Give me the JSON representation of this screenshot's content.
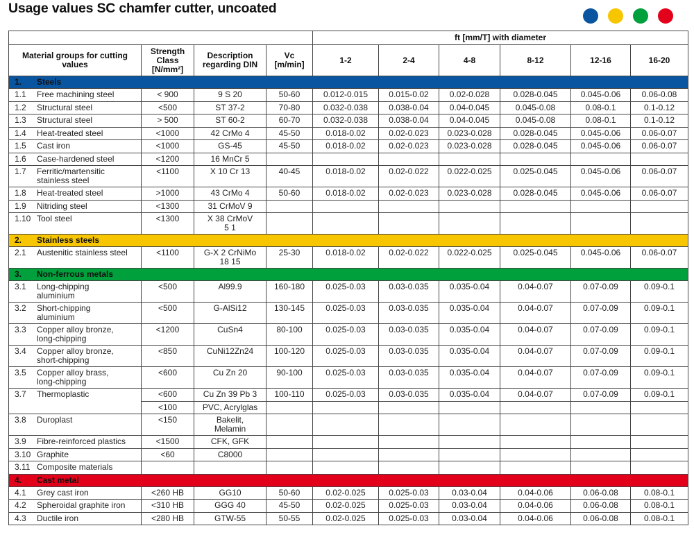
{
  "title": "Usage values SC chamfer cutter, uncoated",
  "legend_dots": [
    "#0a55a0",
    "#f7c600",
    "#00a03c",
    "#e2001a"
  ],
  "header": {
    "ft_group": "ft [mm/T] with diameter",
    "material": "Material groups for cutting values",
    "strength": "Strength Class [N/mm²]",
    "din": "Description regarding DIN",
    "vc": "Vc [m/min]",
    "diameters": [
      "1-2",
      "2-4",
      "4-8",
      "8-12",
      "12-16",
      "16-20"
    ]
  },
  "sections": [
    {
      "no": "1.",
      "name": "Steels",
      "color": "#0a55a0",
      "rows": [
        {
          "no": "1.1",
          "name": "Free machining steel",
          "strength": "< 900",
          "din": "9 S 20",
          "vc": "50-60",
          "ft": [
            "0.012-0.015",
            "0.015-0.02",
            "0.02-0.028",
            "0.028-0.045",
            "0.045-0.06",
            "0.06-0.08"
          ]
        },
        {
          "no": "1.2",
          "name": "Structural steel",
          "strength": "<500",
          "din": "ST 37-2",
          "vc": "70-80",
          "ft": [
            "0.032-0.038",
            "0.038-0.04",
            "0.04-0.045",
            "0.045-0.08",
            "0.08-0.1",
            "0.1-0.12"
          ]
        },
        {
          "no": "1.3",
          "name": "Structural steel",
          "strength": "> 500",
          "din": "ST 60-2",
          "vc": "60-70",
          "ft": [
            "0.032-0.038",
            "0.038-0.04",
            "0.04-0.045",
            "0.045-0.08",
            "0.08-0.1",
            "0.1-0.12"
          ]
        },
        {
          "no": "1.4",
          "name": "Heat-treated steel",
          "strength": "<1000",
          "din": "42 CrMo 4",
          "vc": "45-50",
          "ft": [
            "0.018-0.02",
            "0.02-0.023",
            "0.023-0.028",
            "0.028-0.045",
            "0.045-0.06",
            "0.06-0.07"
          ]
        },
        {
          "no": "1.5",
          "name": "Cast iron",
          "strength": "<1000",
          "din": "GS-45",
          "vc": "45-50",
          "ft": [
            "0.018-0.02",
            "0.02-0.023",
            "0.023-0.028",
            "0.028-0.045",
            "0.045-0.06",
            "0.06-0.07"
          ]
        },
        {
          "no": "1.6",
          "name": "Case-hardened steel",
          "strength": "<1200",
          "din": "16 MnCr 5",
          "vc": "",
          "ft": [
            "",
            "",
            "",
            "",
            "",
            ""
          ]
        },
        {
          "no": "1.7",
          "name": "Ferritic/martensitic\nstainless steel",
          "strength": "<1100",
          "din": "X 10 Cr 13",
          "vc": "40-45",
          "ft": [
            "0.018-0.02",
            "0.02-0.022",
            "0.022-0.025",
            "0.025-0.045",
            "0.045-0.06",
            "0.06-0.07"
          ]
        },
        {
          "no": "1.8",
          "name": "Heat-treated steel",
          "strength": ">1000",
          "din": "43 CrMo 4",
          "vc": "50-60",
          "ft": [
            "0.018-0.02",
            "0.02-0.023",
            "0.023-0.028",
            "0.028-0.045",
            "0.045-0.06",
            "0.06-0.07"
          ]
        },
        {
          "no": "1.9",
          "name": "Nitriding steel",
          "strength": "<1300",
          "din": "31 CrMoV 9",
          "vc": "",
          "ft": [
            "",
            "",
            "",
            "",
            "",
            ""
          ]
        },
        {
          "no": "1.10",
          "name": "Tool steel",
          "strength": "<1300",
          "din": "X 38 CrMoV\n5 1",
          "vc": "",
          "ft": [
            "",
            "",
            "",
            "",
            "",
            ""
          ]
        }
      ]
    },
    {
      "no": "2.",
      "name": "Stainless steels",
      "color": "#f7c600",
      "rows": [
        {
          "no": "2.1",
          "name": "Austenitic stainless steel",
          "strength": "<1100",
          "din": "G-X 2 CrNiMo\n18 15",
          "vc": "25-30",
          "ft": [
            "0.018-0.02",
            "0.02-0.022",
            "0.022-0.025",
            "0.025-0.045",
            "0.045-0.06",
            "0.06-0.07"
          ]
        }
      ]
    },
    {
      "no": "3.",
      "name": "Non-ferrous metals",
      "color": "#00a03c",
      "rows": [
        {
          "no": "3.1",
          "name": "Long-chipping\naluminium",
          "strength": "<500",
          "din": "Al99.9",
          "vc": "160-180",
          "ft": [
            "0.025-0.03",
            "0.03-0.035",
            "0.035-0.04",
            "0.04-0.07",
            "0.07-0.09",
            "0.09-0.1"
          ]
        },
        {
          "no": "3.2",
          "name": "Short-chipping\naluminium",
          "strength": "<500",
          "din": "G-AlSi12",
          "vc": "130-145",
          "ft": [
            "0.025-0.03",
            "0.03-0.035",
            "0.035-0.04",
            "0.04-0.07",
            "0.07-0.09",
            "0.09-0.1"
          ]
        },
        {
          "no": "3.3",
          "name": "Copper alloy bronze,\nlong-chipping",
          "strength": "<1200",
          "din": "CuSn4",
          "vc": "80-100",
          "ft": [
            "0.025-0.03",
            "0.03-0.035",
            "0.035-0.04",
            "0.04-0.07",
            "0.07-0.09",
            "0.09-0.1"
          ]
        },
        {
          "no": "3.4",
          "name": "Copper alloy bronze,\nshort-chipping",
          "strength": "<850",
          "din": "CuNi12Zn24",
          "vc": "100-120",
          "ft": [
            "0.025-0.03",
            "0.03-0.035",
            "0.035-0.04",
            "0.04-0.07",
            "0.07-0.09",
            "0.09-0.1"
          ]
        },
        {
          "no": "3.5",
          "name": "Copper alloy brass,\nlong-chipping",
          "strength": "<600",
          "din": "Cu Zn 20",
          "vc": "90-100",
          "ft": [
            "0.025-0.03",
            "0.03-0.035",
            "0.035-0.04",
            "0.04-0.07",
            "0.07-0.09",
            "0.09-0.1"
          ]
        },
        {
          "no": "3.7",
          "name": "Thermoplastic",
          "strength": "<600",
          "din": "Cu Zn 39 Pb 3",
          "vc": "100-110",
          "ft": [
            "0.025-0.03",
            "0.03-0.035",
            "0.035-0.04",
            "0.04-0.07",
            "0.07-0.09",
            "0.09-0.1"
          ]
        },
        {
          "sub": true,
          "strength": "<100",
          "din": "PVC, Acrylglas",
          "vc": "",
          "ft": [
            "",
            "",
            "",
            "",
            "",
            ""
          ]
        },
        {
          "no": "3.8",
          "name": "Duroplast",
          "strength": "<150",
          "din": "Bakelit,\nMelamin",
          "vc": "",
          "ft": [
            "",
            "",
            "",
            "",
            "",
            ""
          ]
        },
        {
          "no": "3.9",
          "name": "Fibre-reinforced plastics",
          "strength": "<1500",
          "din": "CFK, GFK",
          "vc": "",
          "ft": [
            "",
            "",
            "",
            "",
            "",
            ""
          ]
        },
        {
          "no": "3.10",
          "name": "Graphite",
          "strength": "<60",
          "din": "C8000",
          "vc": "",
          "ft": [
            "",
            "",
            "",
            "",
            "",
            ""
          ]
        },
        {
          "no": "3.11",
          "name": "Composite materials",
          "strength": "",
          "din": "",
          "vc": "",
          "ft": [
            "",
            "",
            "",
            "",
            "",
            ""
          ]
        }
      ]
    },
    {
      "no": "4.",
      "name": "Cast metal",
      "color": "#e2001a",
      "rows": [
        {
          "no": "4.1",
          "name": "Grey cast iron",
          "strength": "<260 HB",
          "din": "GG10",
          "vc": "50-60",
          "ft": [
            "0.02-0.025",
            "0.025-0.03",
            "0.03-0.04",
            "0.04-0.06",
            "0.06-0.08",
            "0.08-0.1"
          ]
        },
        {
          "no": "4.2",
          "name": "Spheroidal graphite iron",
          "strength": "<310 HB",
          "din": "GGG 40",
          "vc": "45-50",
          "ft": [
            "0.02-0.025",
            "0.025-0.03",
            "0.03-0.04",
            "0.04-0.06",
            "0.06-0.08",
            "0.08-0.1"
          ]
        },
        {
          "no": "4.3",
          "name": "Ductile iron",
          "strength": "<280 HB",
          "din": "GTW-55",
          "vc": "50-55",
          "ft": [
            "0.02-0.025",
            "0.025-0.03",
            "0.03-0.04",
            "0.04-0.06",
            "0.06-0.08",
            "0.08-0.1"
          ]
        }
      ]
    }
  ]
}
